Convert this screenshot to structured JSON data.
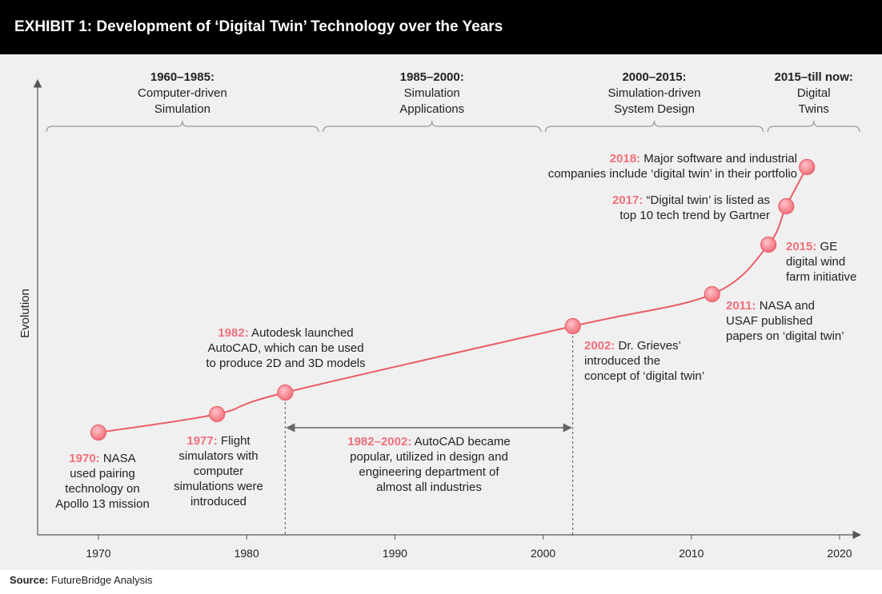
{
  "header": {
    "title": "EXHIBIT 1: Development of ‘Digital Twin’ Technology over the Years"
  },
  "source": {
    "label": "Source:",
    "text": " FutureBridge Analysis"
  },
  "colors": {
    "accent": "#f0808a",
    "accent_dark": "#e05060",
    "line": "#ec5b66",
    "axis": "#555555",
    "bracket": "#999999",
    "text": "#222222"
  },
  "chart_data": {
    "type": "line",
    "ylabel": "Evolution",
    "x_ticks": [
      1970,
      1980,
      1990,
      2000,
      2010,
      2020
    ],
    "xlim": [
      1966,
      2021
    ],
    "grid": false,
    "periods": [
      {
        "title": "1960–1985:",
        "lines": [
          "Computer-driven",
          "Simulation"
        ],
        "start": 1966,
        "end": 1985
      },
      {
        "title": "1985–2000:",
        "lines": [
          "Simulation",
          "Applications"
        ],
        "start": 1985,
        "end": 2000
      },
      {
        "title": "2000–2015:",
        "lines": [
          "Simulation-driven",
          "System Design"
        ],
        "start": 2000,
        "end": 2015
      },
      {
        "title": "2015–till now:",
        "lines": [
          "Digital",
          "Twins"
        ],
        "start": 2015,
        "end": 2021
      }
    ],
    "milestones": [
      {
        "year": 1970,
        "label": "1970:",
        "lines": [
          " NASA",
          "used pairing",
          "technology on",
          "Apollo 13 mission"
        ]
      },
      {
        "year": 1978,
        "label": "1977:",
        "lines": [
          " Flight",
          "simulators with",
          "computer",
          "simulations were",
          "introduced"
        ]
      },
      {
        "year": 1982.6,
        "label": "1982:",
        "lines": [
          " Autodesk launched",
          "AutoCAD, which can be used",
          "to produce 2D and 3D models"
        ]
      },
      {
        "year": 2002,
        "label": "2002:",
        "lines": [
          " Dr. Grieves’",
          "introduced the",
          "concept of ‘digital twin’"
        ]
      },
      {
        "year": 2011.4,
        "label": "2011:",
        "lines": [
          " NASA and",
          "USAF published",
          "papers on ‘digital twin’"
        ]
      },
      {
        "year": 2015.2,
        "label": "2015:",
        "lines": [
          " GE",
          "digital wind",
          "farm initiative"
        ]
      },
      {
        "year": 2016.4,
        "label": "2017:",
        "lines": [
          " “Digital twin’ is listed as",
          "top 10 tech trend by Gartner"
        ]
      },
      {
        "year": 2017.8,
        "label": "2018:",
        "lines": [
          " Major software and industrial",
          "companies include ‘digital twin’ in their portfolio"
        ]
      }
    ],
    "span": {
      "start": 1982.6,
      "end": 2002,
      "label": "1982–2002:",
      "lines": [
        " AutoCAD became",
        "popular, utilized in design and",
        "engineering department of",
        "almost all industries"
      ]
    }
  }
}
